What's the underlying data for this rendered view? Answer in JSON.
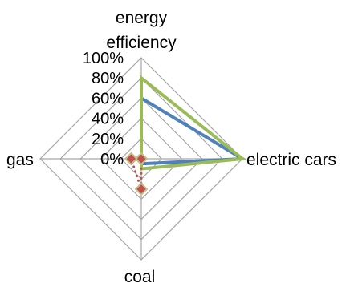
{
  "chart_data": {
    "type": "radar",
    "categories": [
      "energy efficiency",
      "electric cars",
      "coal",
      "gas"
    ],
    "category_label_lines": [
      [
        "energy",
        "efficiency"
      ],
      [
        "electric cars"
      ],
      [
        "coal"
      ],
      [
        "gas"
      ]
    ],
    "rlim": [
      0,
      100
    ],
    "ticks": [
      "0%",
      "20%",
      "40%",
      "60%",
      "80%",
      "100%"
    ],
    "grid": true,
    "legend": "none",
    "series": [
      {
        "values": [
          60,
          100,
          5,
          0
        ],
        "color": "#4f81bd",
        "style": "solid",
        "marker": "none"
      },
      {
        "values": [
          80,
          100,
          10,
          0
        ],
        "color": "#9bbb59",
        "style": "solid",
        "marker": "none"
      },
      {
        "values": [
          0,
          0,
          30,
          10
        ],
        "color": "#c0504d",
        "style": "dotted",
        "marker": "diamond",
        "marker_fill": "#c0504d",
        "marker_edge": "#c3c08a"
      }
    ]
  }
}
